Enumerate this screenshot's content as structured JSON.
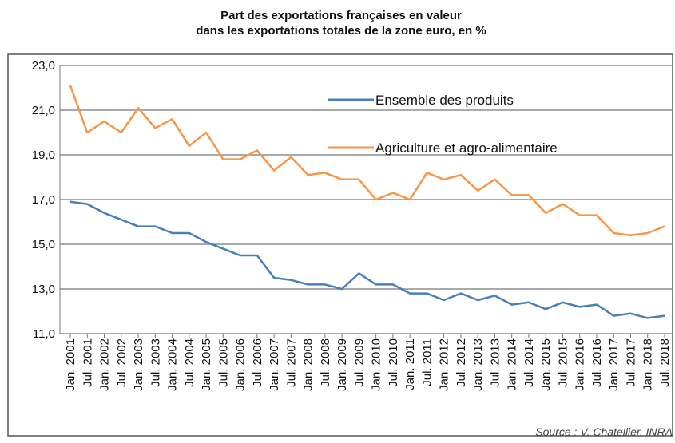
{
  "chart_data": {
    "type": "line",
    "title": [
      "Part des exportations françaises en valeur",
      "dans les exportations totales de la zone euro, en %"
    ],
    "source": "Source : V. Chatellier, INRA",
    "categories": [
      "Jan. 2001",
      "Jul. 2001",
      "Jan. 2002",
      "Jul. 2002",
      "Jan. 2003",
      "Jul. 2003",
      "Jan. 2004",
      "Jul. 2004",
      "Jan. 2005",
      "Jul. 2005",
      "Jan. 2006",
      "Jul. 2006",
      "Jan. 2007",
      "Jul. 2007",
      "Jan. 2008",
      "Jul. 2008",
      "Jan. 2009",
      "Jul. 2009",
      "Jan. 2010",
      "Jul. 2010",
      "Jan. 2011",
      "Jul. 2011",
      "Jan. 2012",
      "Jul. 2012",
      "Jan. 2013",
      "Jul. 2013",
      "Jan. 2014",
      "Jul. 2014",
      "Jan. 2015",
      "Jul. 2015",
      "Jan. 2016",
      "Jul. 2016",
      "Jan. 2017",
      "Jul. 2017",
      "Jan. 2018",
      "Jul. 2018"
    ],
    "series": [
      {
        "name": "Ensemble des produits",
        "color": "#4a7ebb",
        "values": [
          16.9,
          16.8,
          16.4,
          16.1,
          15.8,
          15.8,
          15.5,
          15.5,
          15.1,
          14.8,
          14.5,
          14.5,
          13.5,
          13.4,
          13.2,
          13.2,
          13.0,
          13.7,
          13.2,
          13.2,
          12.8,
          12.8,
          12.5,
          12.8,
          12.5,
          12.7,
          12.3,
          12.4,
          12.1,
          12.4,
          12.2,
          12.3,
          11.8,
          11.9,
          11.7,
          11.8
        ]
      },
      {
        "name": "Agriculture  et agro-alimentaire",
        "color": "#f79646",
        "values": [
          22.1,
          20.0,
          20.5,
          20.0,
          21.1,
          20.2,
          20.6,
          19.4,
          20.0,
          18.8,
          18.8,
          19.2,
          18.3,
          18.9,
          18.1,
          18.2,
          17.9,
          17.9,
          17.0,
          17.3,
          17.0,
          18.2,
          17.9,
          18.1,
          17.4,
          17.9,
          17.2,
          17.2,
          16.4,
          16.8,
          16.3,
          16.3,
          15.5,
          15.4,
          15.5,
          15.8
        ]
      }
    ],
    "ylim": [
      11,
      23
    ],
    "yticks": [
      {
        "value": 11,
        "label": "11,0"
      },
      {
        "value": 13,
        "label": "13,0"
      },
      {
        "value": 15,
        "label": "15,0"
      },
      {
        "value": 17,
        "label": "17,0"
      },
      {
        "value": 19,
        "label": "19,0"
      },
      {
        "value": 21,
        "label": "21,0"
      },
      {
        "value": 23,
        "label": "23,0"
      }
    ],
    "grid": true
  }
}
